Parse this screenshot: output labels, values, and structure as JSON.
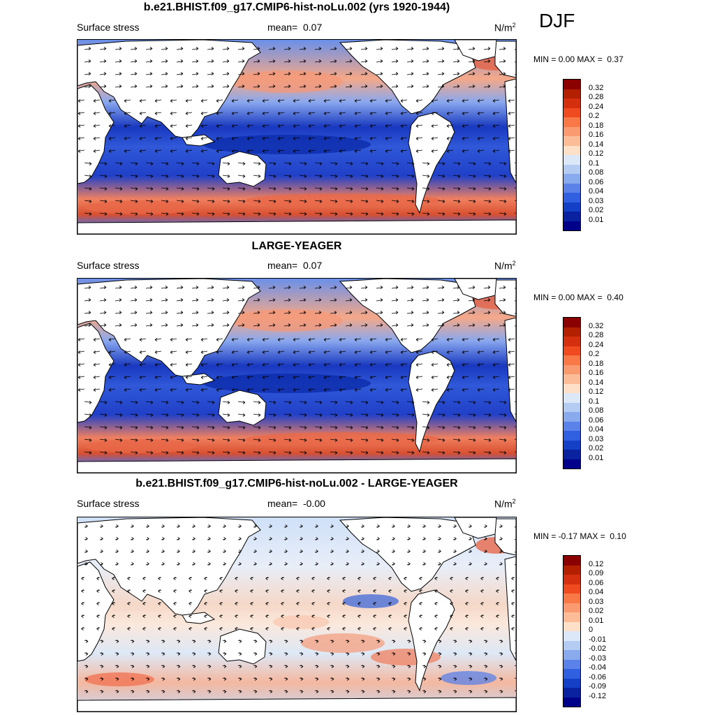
{
  "season": "DJF",
  "panels": [
    {
      "title": "b.e21.BHIST.f09_g17.CMIP6-hist-noLu.002 (yrs 1920-1944)",
      "variable": "Surface stress",
      "mean_label": "mean=",
      "mean_value": "0.07",
      "units_base": "N/m",
      "units_exp": "2",
      "min_label": "MIN =",
      "min_value": "0.00",
      "max_label": "MAX =",
      "max_value": "0.37",
      "colorbar_labels": [
        "0.32",
        "0.28",
        "0.24",
        "0.2",
        "0.18",
        "0.16",
        "0.14",
        "0.12",
        "0.1",
        "0.08",
        "0.06",
        "0.04",
        "0.03",
        "0.02",
        "0.01"
      ]
    },
    {
      "title": "LARGE-YEAGER",
      "variable": "Surface stress",
      "mean_label": "mean=",
      "mean_value": "0.07",
      "units_base": "N/m",
      "units_exp": "2",
      "min_label": "MIN =",
      "min_value": "0.00",
      "max_label": "MAX =",
      "max_value": "0.40",
      "colorbar_labels": [
        "0.32",
        "0.28",
        "0.24",
        "0.2",
        "0.18",
        "0.16",
        "0.14",
        "0.12",
        "0.1",
        "0.08",
        "0.06",
        "0.04",
        "0.03",
        "0.02",
        "0.01"
      ]
    },
    {
      "title": "b.e21.BHIST.f09_g17.CMIP6-hist-noLu.002 - LARGE-YEAGER",
      "variable": "Surface stress",
      "mean_label": "mean=",
      "mean_value": "-0.00",
      "units_base": "N/m",
      "units_exp": "2",
      "min_label": "MIN =",
      "min_value": "-0.17",
      "max_label": "MAX =",
      "max_value": "0.10",
      "colorbar_labels": [
        "0.12",
        "0.09",
        "0.06",
        "0.04",
        "0.03",
        "0.02",
        "0.01",
        "0",
        "-0.01",
        "-0.02",
        "-0.03",
        "-0.04",
        "-0.06",
        "-0.09",
        "-0.12"
      ]
    }
  ],
  "colors": {
    "colorbar": [
      "#8b0000",
      "#b22000",
      "#d43010",
      "#f04a20",
      "#f87848",
      "#fa9a70",
      "#fcbc98",
      "#fee0c8",
      "#dce8f8",
      "#b4ccf2",
      "#8aaaee",
      "#5a82e8",
      "#3060e0",
      "#1440c8",
      "#0a22a0",
      "#00008a"
    ],
    "land": "#ffffff",
    "arrow": "#000000"
  }
}
